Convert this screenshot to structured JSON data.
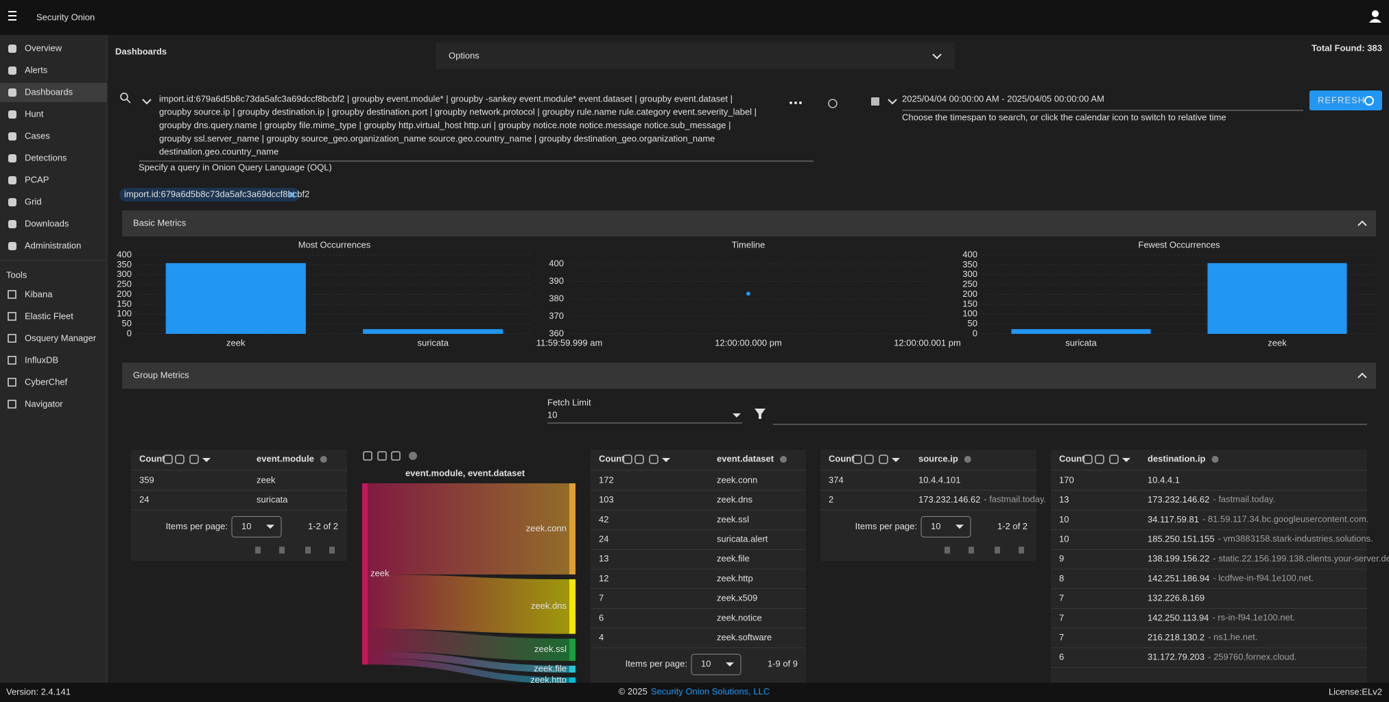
{
  "header": {
    "brand": "Security Onion"
  },
  "nav": {
    "items": [
      "Overview",
      "Alerts",
      "Dashboards",
      "Hunt",
      "Cases",
      "Detections",
      "PCAP",
      "Grid",
      "Downloads",
      "Administration"
    ],
    "tools_title": "Tools",
    "tools": [
      "Kibana",
      "Elastic Fleet",
      "Osquery Manager",
      "InfluxDB",
      "CyberChef",
      "Navigator"
    ]
  },
  "page": {
    "title": "Dashboards",
    "options": "Options",
    "total_found": "Total Found: 383"
  },
  "query": {
    "lines": [
      "import.id:679a6d5b8c73da5afc3a69dccf8bcbf2 | groupby event.module* | groupby -sankey event.module* event.dataset | groupby event.dataset |",
      "groupby source.ip | groupby destination.ip | groupby destination.port | groupby network.protocol | groupby rule.name rule.category event.severity_label |",
      "groupby dns.query.name | groupby file.mime_type | groupby http.virtual_host http.uri | groupby notice.note notice.message notice.sub_message |",
      "groupby ssl.server_name | groupby source_geo.organization_name source.geo.country_name | groupby destination_geo.organization_name",
      "destination.geo.country_name"
    ],
    "hint": "Specify a query in Onion Query Language (OQL)",
    "date_range": "2025/04/04 00:00:00 AM - 2025/04/05 00:00:00 AM",
    "date_hint": "Choose the timespan to search, or click the calendar icon to switch to relative time",
    "refresh": "REFRESH"
  },
  "filter_chip": "import.id:679a6d5b8c73da5afc3a69dccf8bcbf2",
  "sections": [
    "Basic Metrics",
    "Group Metrics"
  ],
  "charts": [
    {
      "type": "bar",
      "title": "Most Occurrences",
      "categories": [
        "zeek",
        "suricata"
      ],
      "values": [
        359,
        24
      ],
      "color": "#2196f3",
      "ylim": [
        0,
        400
      ],
      "yticks": [
        0,
        50,
        100,
        150,
        200,
        250,
        300,
        350,
        400
      ],
      "grid": true
    },
    {
      "type": "line",
      "title": "Timeline",
      "categories": [
        "11:59:59.999 am",
        "12:00:00.000 pm",
        "12:00:00.001 pm"
      ],
      "values": [
        null,
        383,
        null
      ],
      "color": "#2196f3",
      "ylim": [
        360,
        400
      ],
      "yticks": [
        360,
        370,
        380,
        390,
        400
      ],
      "grid": true
    },
    {
      "type": "bar",
      "title": "Fewest Occurrences",
      "categories": [
        "suricata",
        "zeek"
      ],
      "values": [
        24,
        359
      ],
      "color": "#2196f3",
      "ylim": [
        0,
        400
      ],
      "yticks": [
        0,
        50,
        100,
        150,
        200,
        250,
        300,
        350,
        400
      ],
      "grid": true
    }
  ],
  "fetch_limit": {
    "label": "Fetch Limit",
    "value": "10"
  },
  "sankey": {
    "type": "sankey",
    "title": "event.module, event.dataset",
    "source": "zeek",
    "source_color": "#c2185b",
    "links": [
      {
        "target": "zeek.conn",
        "value": 172,
        "color": "#e0a030"
      },
      {
        "target": "zeek.dns",
        "value": 103,
        "color": "#f5e800"
      },
      {
        "target": "zeek.ssl",
        "value": 42,
        "color": "#1b9e3e"
      },
      {
        "target": "zeek.file",
        "value": 13,
        "color": "#26c6da"
      },
      {
        "target": "zeek.http",
        "value": 12,
        "color": "#00bcd4"
      }
    ]
  },
  "tables": [
    {
      "columns": [
        "Count",
        "event.module"
      ],
      "rows": [
        [
          359,
          "zeek"
        ],
        [
          24,
          "suricata"
        ]
      ],
      "items_per_page_label": "Items per page:",
      "items_per_page": "10",
      "range": "1-2 of 2"
    },
    {
      "columns": [
        "Count",
        "event.dataset"
      ],
      "rows": [
        [
          172,
          "zeek.conn"
        ],
        [
          103,
          "zeek.dns"
        ],
        [
          42,
          "zeek.ssl"
        ],
        [
          24,
          "suricata.alert"
        ],
        [
          13,
          "zeek.file"
        ],
        [
          12,
          "zeek.http"
        ],
        [
          7,
          "zeek.x509"
        ],
        [
          6,
          "zeek.notice"
        ],
        [
          4,
          "zeek.software"
        ]
      ],
      "items_per_page_label": "Items per page:",
      "items_per_page": "10",
      "range": "1-9 of 9"
    },
    {
      "columns": [
        "Count",
        "source.ip"
      ],
      "rows": [
        [
          374,
          "10.4.4.101"
        ],
        [
          2,
          "173.232.146.62",
          "- fastmail.today."
        ]
      ],
      "items_per_page_label": "Items per page:",
      "items_per_page": "10",
      "range": "1-2 of 2"
    },
    {
      "columns": [
        "Count",
        "destination.ip"
      ],
      "rows": [
        [
          170,
          "10.4.4.1"
        ],
        [
          13,
          "173.232.146.62",
          "- fastmail.today."
        ],
        [
          10,
          "34.117.59.81",
          "- 81.59.117.34.bc.googleusercontent.com."
        ],
        [
          10,
          "185.250.151.155",
          "- vm3883158.stark-industries.solutions."
        ],
        [
          9,
          "138.199.156.22",
          "- static.22.156.199.138.clients.your-server.de."
        ],
        [
          8,
          "142.251.186.94",
          "- lcdfwe-in-f94.1e100.net."
        ],
        [
          7,
          "132.226.8.169"
        ],
        [
          7,
          "142.250.113.94",
          "- rs-in-f94.1e100.net."
        ],
        [
          7,
          "216.218.130.2",
          "- ns1.he.net."
        ],
        [
          6,
          "31.172.79.203",
          "- 259760.fornex.cloud."
        ]
      ]
    }
  ],
  "footer": {
    "version": "Version: 2.4.141",
    "copyright": "© 2025",
    "company": "Security Onion Solutions, LLC",
    "license": "License:ELv2"
  }
}
